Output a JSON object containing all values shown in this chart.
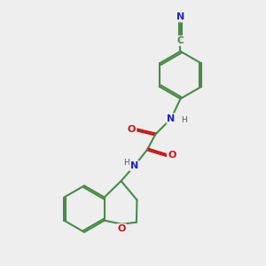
{
  "bg_color": "#eeeeee",
  "bond_color": "#4a8a4a",
  "n_color": "#2222cc",
  "o_color": "#cc1111",
  "lw": 1.5,
  "fs": 8.0,
  "xlim": [
    0,
    10
  ],
  "ylim": [
    0,
    10
  ]
}
